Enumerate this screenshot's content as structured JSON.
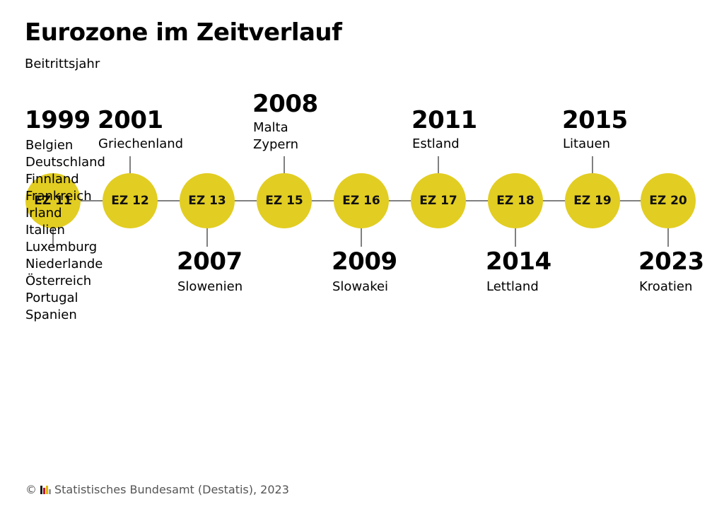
{
  "title": "Eurozone im Zeitverlauf",
  "subtitle": "Beitrittsjahr",
  "colors": {
    "node": "#e2cd22",
    "line": "#808080"
  },
  "nodes": [
    {
      "label": "EZ 11",
      "year": "1999",
      "countries": [
        "Belgien",
        "Deutschland",
        "Finnland",
        "Frankreich",
        "Irland",
        "Italien",
        "Luxemburg",
        "Niederlande",
        "Österreich",
        "Portugal",
        "Spanien"
      ]
    },
    {
      "label": "EZ 12",
      "year": "2001",
      "countries": [
        "Griechenland"
      ]
    },
    {
      "label": "EZ 13",
      "year": "2007",
      "countries": [
        "Slowenien"
      ]
    },
    {
      "label": "EZ 15",
      "year": "2008",
      "countries": [
        "Malta",
        "Zypern"
      ]
    },
    {
      "label": "EZ 16",
      "year": "2009",
      "countries": [
        "Slowakei"
      ]
    },
    {
      "label": "EZ 17",
      "year": "2011",
      "countries": [
        "Estland"
      ]
    },
    {
      "label": "EZ 18",
      "year": "2014",
      "countries": [
        "Lettland"
      ]
    },
    {
      "label": "EZ 19",
      "year": "2015",
      "countries": [
        "Litauen"
      ]
    },
    {
      "label": "EZ 20",
      "year": "2023",
      "countries": [
        "Kroatien"
      ]
    }
  ],
  "source": {
    "text": "Statistisches Bundesamt (Destatis), 2023",
    "copyright": "©",
    "logo_icon": "destatis-logo-icon"
  }
}
